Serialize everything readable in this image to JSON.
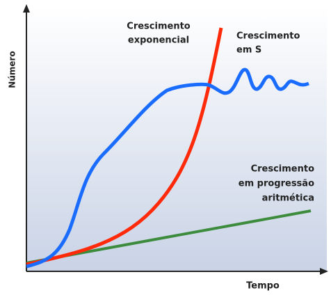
{
  "axes": {
    "y_label": "Número",
    "x_label": "Tempo"
  },
  "curves": [
    {
      "label_lines": [
        "Crescimento",
        "exponencial"
      ]
    },
    {
      "label_lines": [
        "Crescimento",
        "em S"
      ]
    },
    {
      "label_lines": [
        "Crescimento",
        "em progressão",
        "aritmética"
      ]
    }
  ]
}
